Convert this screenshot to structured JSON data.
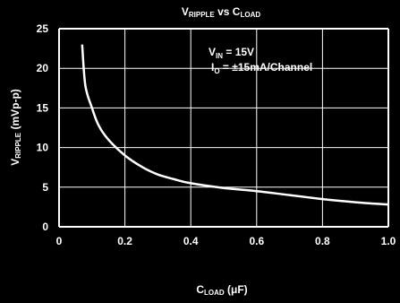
{
  "chart_data": {
    "type": "line",
    "title": {
      "main": "V",
      "sub": "RIPPLE",
      "mid": " vs C",
      "sub2": "LOAD"
    },
    "xlabel": {
      "main": "C",
      "sub": "LOAD",
      "rest": " (μF)"
    },
    "ylabel": {
      "main": "V",
      "sub": "RIPPLE",
      "rest": " (mVp-p)"
    },
    "xlim": [
      0,
      1.0
    ],
    "ylim": [
      0,
      25
    ],
    "x_ticks": [
      "0",
      "0.2",
      "0.4",
      "0.6",
      "0.8",
      "1.0"
    ],
    "y_ticks": [
      "0",
      "5",
      "10",
      "15",
      "20",
      "25"
    ],
    "grid": true,
    "annotations": [
      {
        "main": "V",
        "sub": "IN",
        "rest": " = 15V"
      },
      {
        "main": "I",
        "sub": "O",
        "rest": " = ±15mA/Channel"
      }
    ],
    "series": [
      {
        "x": [
          0.07,
          0.08,
          0.1,
          0.12,
          0.15,
          0.2,
          0.25,
          0.3,
          0.35,
          0.4,
          0.5,
          0.6,
          0.7,
          0.8,
          0.9,
          1.0
        ],
        "y": [
          23.0,
          17.8,
          15.0,
          12.8,
          11.0,
          9.0,
          7.6,
          6.6,
          6.0,
          5.5,
          4.9,
          4.5,
          4.0,
          3.5,
          3.1,
          2.8
        ]
      }
    ],
    "colors": {
      "background": "#000000",
      "foreground": "#ffffff"
    }
  }
}
